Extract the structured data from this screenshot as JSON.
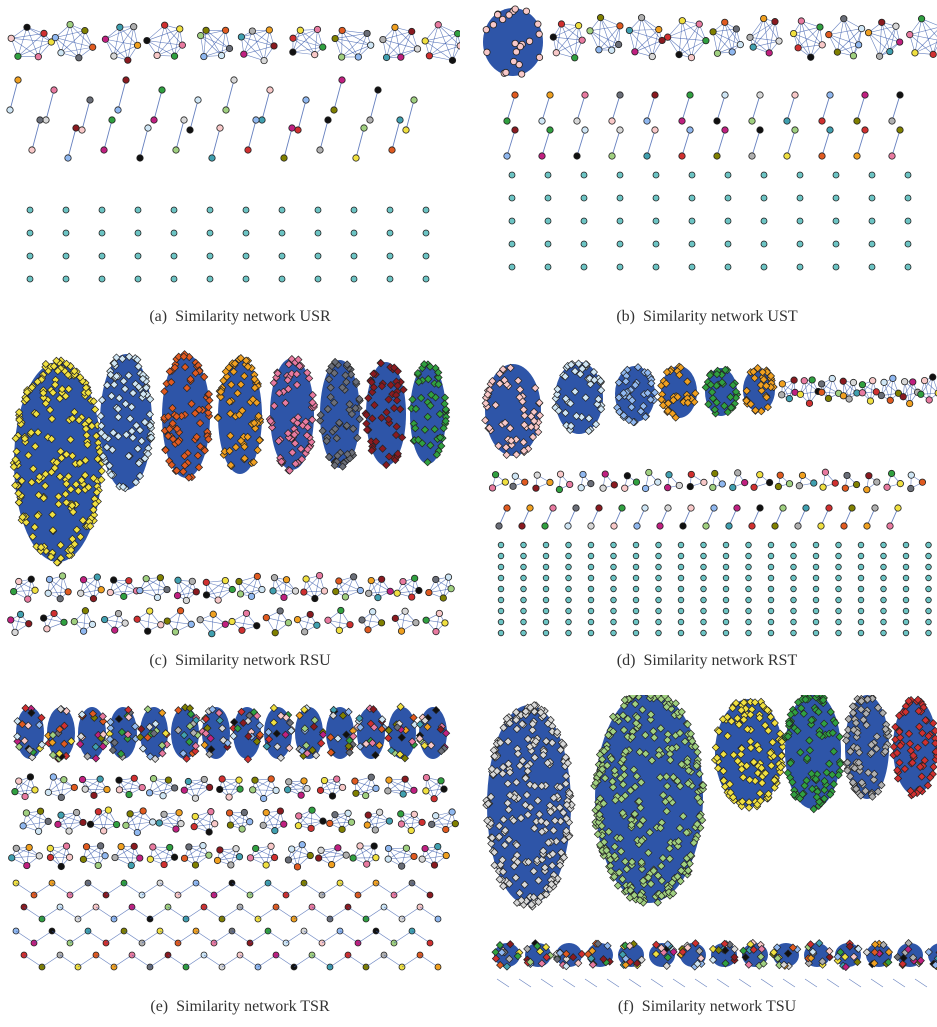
{
  "figure": {
    "panels": [
      {
        "id": "a",
        "label": "(a)",
        "caption": "Similarity network USR"
      },
      {
        "id": "b",
        "label": "(b)",
        "caption": "Similarity network UST"
      },
      {
        "id": "c",
        "label": "(c)",
        "caption": "Similarity network RSU"
      },
      {
        "id": "d",
        "label": "(d)",
        "caption": "Similarity network RST"
      },
      {
        "id": "e",
        "label": "(e)",
        "caption": "Similarity network TSR"
      },
      {
        "id": "f",
        "label": "(f)",
        "caption": "Similarity network TSU"
      }
    ],
    "colors": {
      "edge": "#3355aa",
      "cluster_fill": "#2e55a8",
      "singleton_node": "#6cc4c4",
      "node_outline": "#222222",
      "node_palette": [
        "#f0e040",
        "#e05a20",
        "#f0a020",
        "#e87aa0",
        "#6a6e78",
        "#8a1a20",
        "#30a040",
        "#cfe6f5",
        "#d8d8d8",
        "#f8c8c8",
        "#90b8f0",
        "#c02080",
        "#111111",
        "#a0d080",
        "#40a0b0",
        "#d03030",
        "#808000",
        "#b0b0b0"
      ]
    }
  }
}
